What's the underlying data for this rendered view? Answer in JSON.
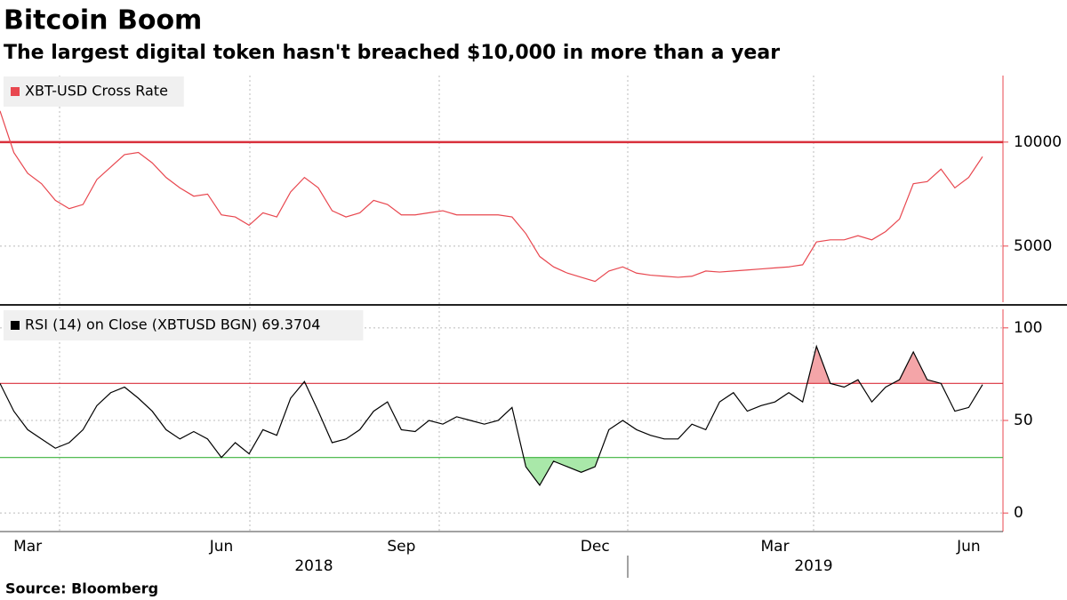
{
  "chart_data": [
    {
      "type": "line",
      "title": "Bitcoin Boom",
      "subtitle": "The largest digital token hasn't breached $10,000 in more than a year",
      "categories": [
        null,
        null,
        "Mar",
        null,
        null,
        null,
        null,
        null,
        null,
        null,
        null,
        null,
        null,
        null,
        null,
        null,
        "Jun",
        null,
        null,
        null,
        null,
        null,
        null,
        null,
        null,
        null,
        null,
        null,
        null,
        "Sep",
        null,
        null,
        null,
        null,
        null,
        null,
        null,
        null,
        null,
        null,
        null,
        null,
        null,
        "Dec",
        null,
        null,
        null,
        null,
        null,
        null,
        null,
        null,
        null,
        null,
        null,
        null,
        "Mar",
        null,
        null,
        null,
        null,
        null,
        null,
        null,
        null,
        null,
        null,
        null,
        null,
        null,
        "Jun",
        null
      ],
      "x_groups": [
        "2018",
        "2019"
      ],
      "series": [
        {
          "name": "XBT-USD Cross Rate",
          "color": "#e8474f",
          "values": [
            11500,
            9500,
            8500,
            8000,
            7200,
            6800,
            7000,
            8200,
            8800,
            9400,
            9500,
            9000,
            8300,
            7800,
            7400,
            7500,
            6500,
            6400,
            6000,
            6600,
            6400,
            7600,
            8300,
            7800,
            6700,
            6400,
            6600,
            7200,
            7000,
            6500,
            6500,
            6600,
            6700,
            6500,
            6500,
            6500,
            6500,
            6400,
            5600,
            4500,
            4000,
            3700,
            3500,
            3300,
            3800,
            4000,
            3700,
            3600,
            3550,
            3500,
            3550,
            3800,
            3750,
            3800,
            3850,
            3900,
            3950,
            4000,
            4100,
            5200,
            5300,
            5300,
            5500,
            5300,
            5700,
            6300,
            8000,
            8100,
            8700,
            7800,
            8300,
            9300
          ]
        }
      ],
      "ylim": [
        2300,
        13200
      ],
      "yticks": [
        5000,
        10000
      ],
      "reference_line": 10000,
      "reference_color": "#d9303c",
      "grid": true
    },
    {
      "type": "line",
      "series": [
        {
          "name": "RSI (14)  on Close (XBTUSD BGN) 69.3704",
          "color": "#000000",
          "values": [
            70,
            55,
            45,
            40,
            35,
            38,
            45,
            58,
            65,
            68,
            62,
            55,
            45,
            40,
            44,
            40,
            30,
            38,
            32,
            45,
            42,
            62,
            71,
            55,
            38,
            40,
            45,
            55,
            60,
            45,
            44,
            50,
            48,
            52,
            50,
            48,
            50,
            57,
            25,
            15,
            28,
            25,
            22,
            25,
            45,
            50,
            45,
            42,
            40,
            40,
            48,
            45,
            60,
            65,
            55,
            58,
            60,
            65,
            60,
            90,
            70,
            68,
            72,
            60,
            68,
            72,
            87,
            72,
            70,
            55,
            57,
            69.3704
          ]
        }
      ],
      "ylim": [
        -10,
        110
      ],
      "yticks": [
        0,
        50,
        100
      ],
      "reference_lines": [
        70,
        30
      ],
      "reference_colors": [
        "#d9303c",
        "#3cb33c"
      ],
      "fill_colors": [
        "#f4a5a8",
        "#a9e8a9"
      ],
      "grid": true
    }
  ],
  "source": "Source: Bloomberg"
}
